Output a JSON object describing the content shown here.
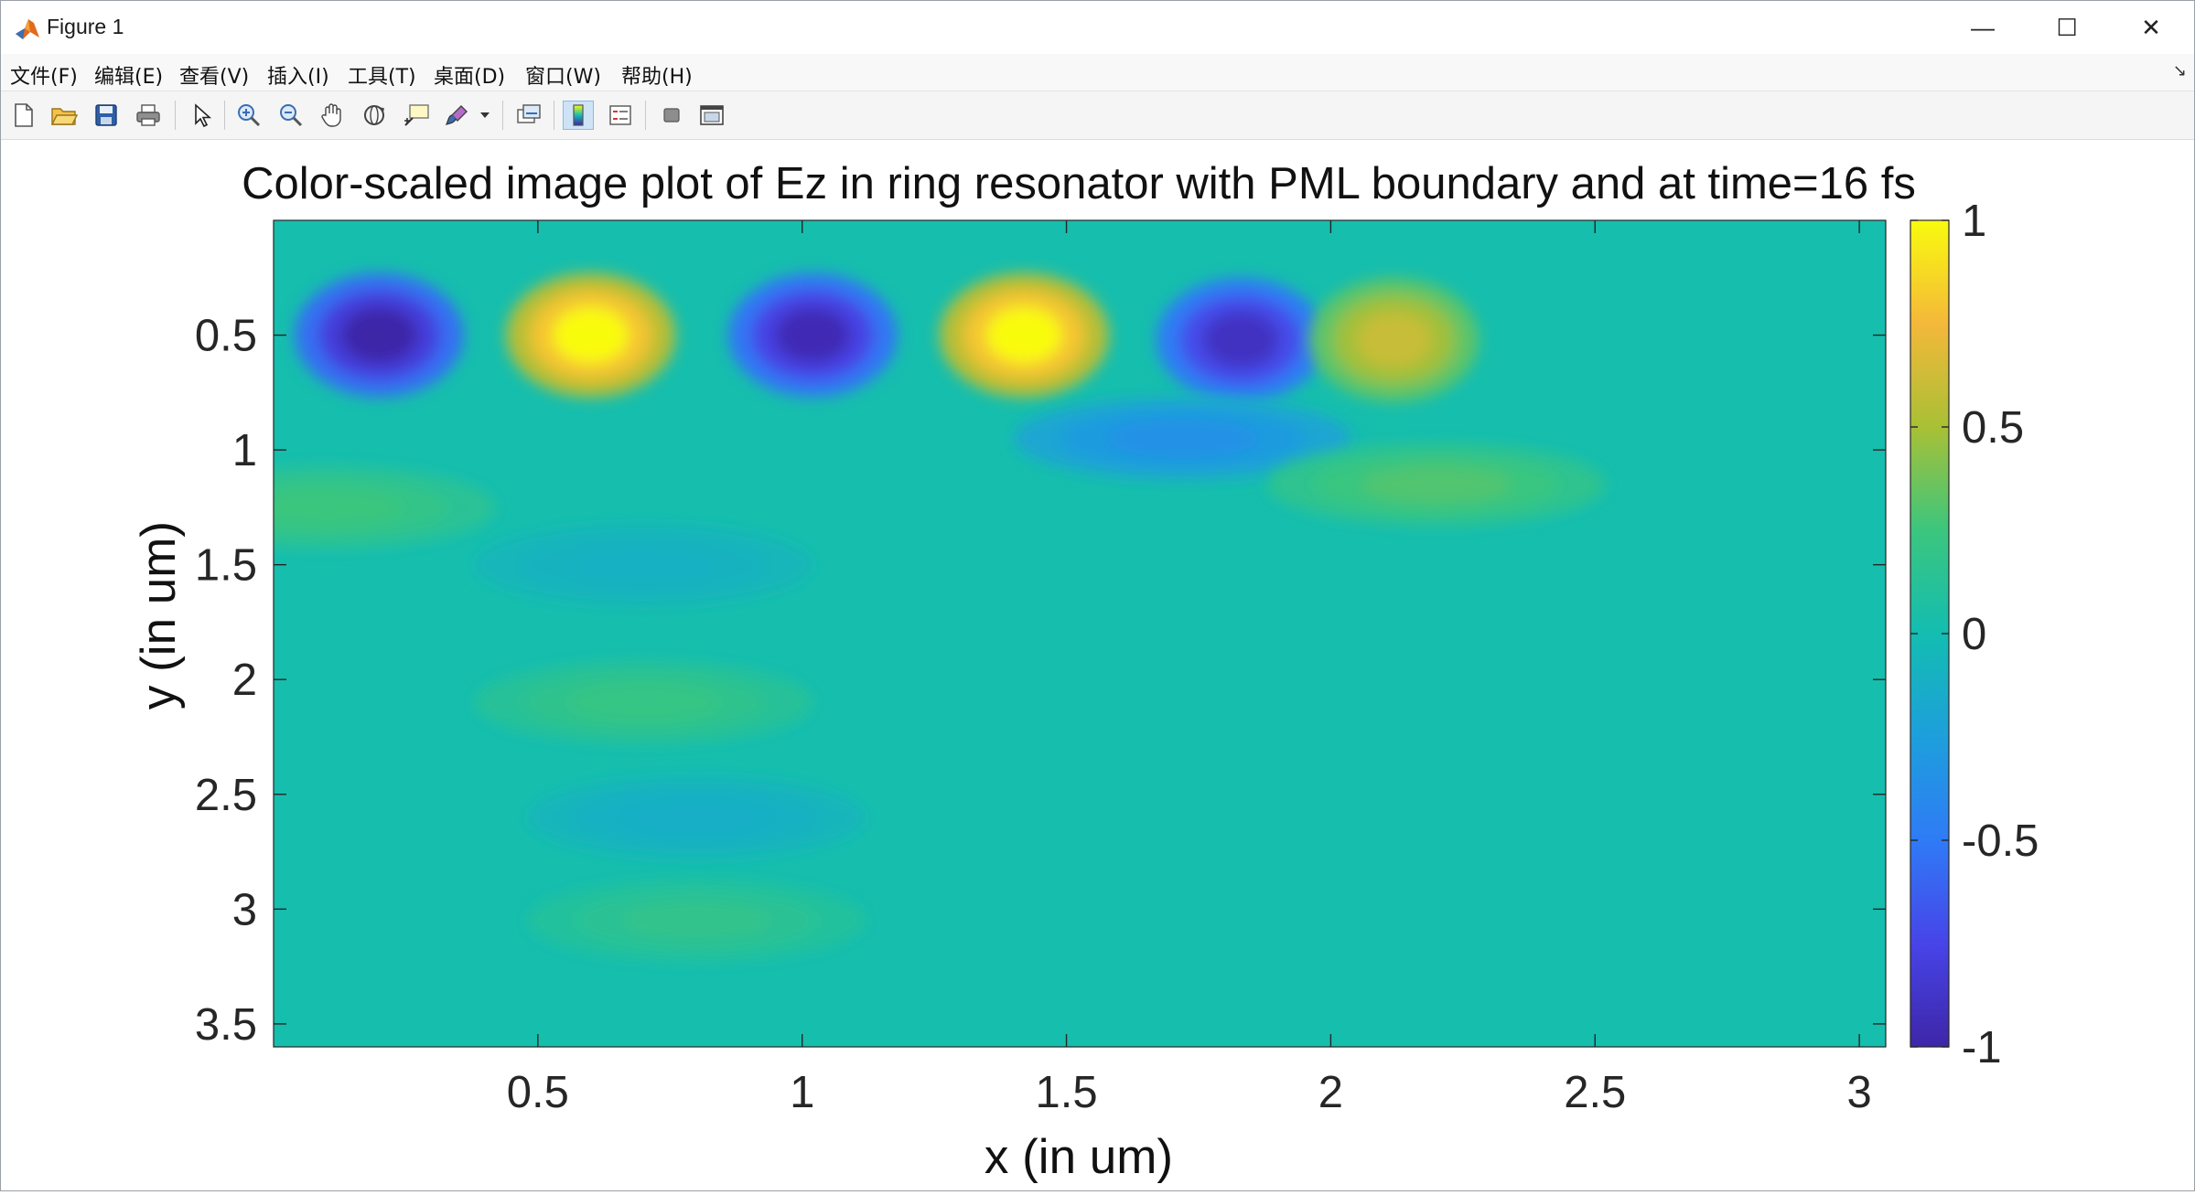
{
  "window": {
    "title": "Figure 1",
    "minimize_glyph": "—",
    "maximize_glyph": "☐",
    "close_glyph": "✕"
  },
  "menu": {
    "items": [
      {
        "label": "文件(F)"
      },
      {
        "label": "编辑(E)"
      },
      {
        "label": "查看(V)"
      },
      {
        "label": "插入(I)"
      },
      {
        "label": "工具(T)"
      },
      {
        "label": "桌面(D)"
      },
      {
        "label": "窗口(W)"
      },
      {
        "label": "帮助(H)"
      }
    ],
    "corner_glyph": "↘"
  },
  "toolbar": {
    "icons": [
      "new-figure-icon",
      "open-file-icon",
      "save-icon",
      "print-icon",
      "pointer-icon",
      "zoom-in-icon",
      "zoom-out-icon",
      "pan-hand-icon",
      "rotate-3d-icon",
      "data-cursor-icon",
      "brush-icon",
      "link-plot-icon",
      "colorbar-icon",
      "legend-icon",
      "hide-plot-tools-icon",
      "show-plot-tools-icon"
    ]
  },
  "chart_data": {
    "type": "heatmap",
    "title": "Color-scaled image plot of Ez in ring resonator with PML boundary and at time=16 fs",
    "xlabel": "x (in um)",
    "ylabel": "y (in um)",
    "xlim": [
      0,
      3.05
    ],
    "ylim": [
      0,
      3.6
    ],
    "y_reversed": true,
    "xticks": [
      "0.5",
      "1",
      "1.5",
      "2",
      "2.5",
      "3"
    ],
    "xtick_values": [
      0.5,
      1,
      1.5,
      2,
      2.5,
      3
    ],
    "yticks": [
      "0.5",
      "1",
      "1.5",
      "2",
      "2.5",
      "3",
      "3.5"
    ],
    "ytick_values": [
      0.5,
      1,
      1.5,
      2,
      2.5,
      3,
      3.5
    ],
    "colormap": "parula",
    "clim": [
      -1,
      1
    ],
    "colorbar": {
      "ticks": [
        "1",
        "0.5",
        "0",
        "-0.5",
        "-1"
      ],
      "tick_values": [
        1,
        0.5,
        0,
        -0.5,
        -1
      ]
    },
    "features": [
      {
        "x": 0.2,
        "y": 0.5,
        "value": -1.0
      },
      {
        "x": 0.6,
        "y": 0.5,
        "value": 1.0
      },
      {
        "x": 1.02,
        "y": 0.5,
        "value": -0.95
      },
      {
        "x": 1.42,
        "y": 0.5,
        "value": 1.0
      },
      {
        "x": 1.83,
        "y": 0.52,
        "value": -0.9
      },
      {
        "x": 2.12,
        "y": 0.52,
        "value": 0.6
      },
      {
        "x": 1.72,
        "y": 0.95,
        "value": -0.35
      },
      {
        "x": 2.2,
        "y": 1.15,
        "value": 0.3
      },
      {
        "x": 0.1,
        "y": 1.25,
        "value": 0.25
      },
      {
        "x": 0.7,
        "y": 2.1,
        "value": 0.22
      },
      {
        "x": 0.8,
        "y": 2.6,
        "value": -0.12
      },
      {
        "x": 0.8,
        "y": 3.05,
        "value": 0.18
      },
      {
        "x": 0.7,
        "y": 1.5,
        "value": -0.1
      }
    ]
  }
}
